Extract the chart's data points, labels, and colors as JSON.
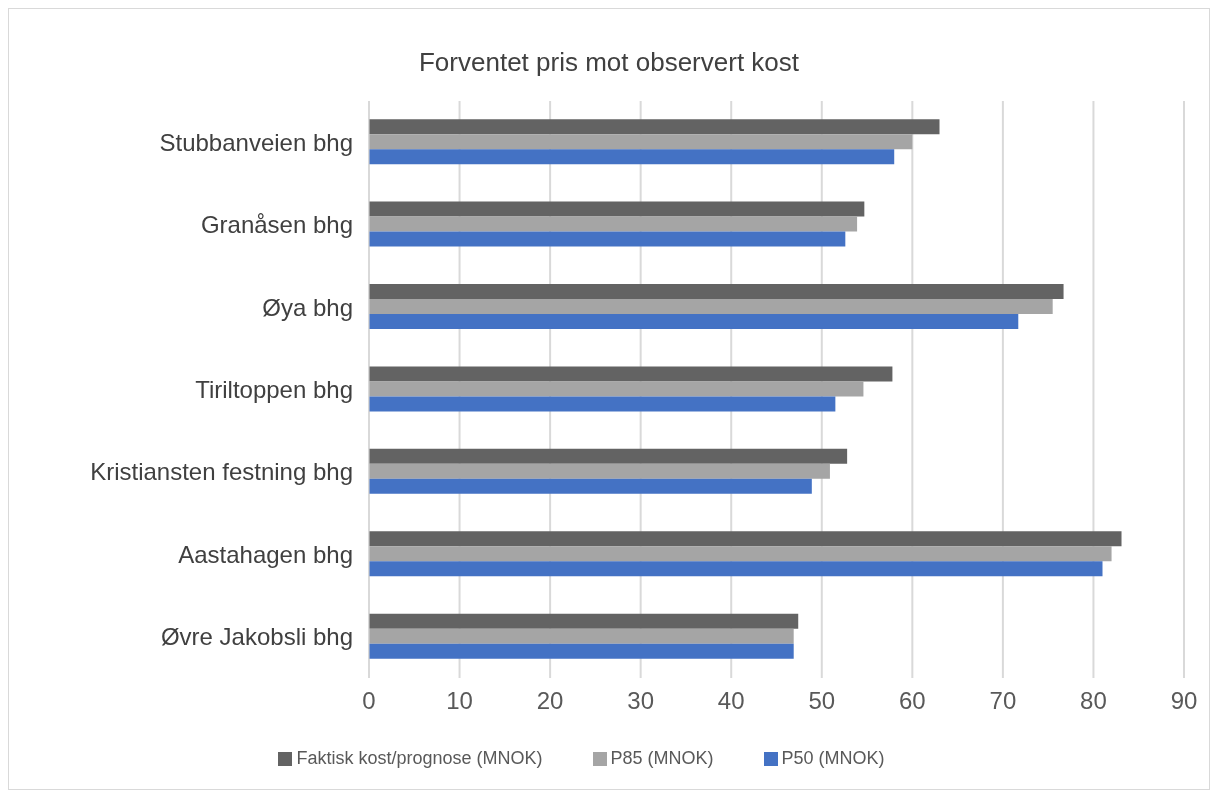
{
  "chart_data": {
    "type": "bar",
    "orientation": "horizontal",
    "title": "Forventet pris mot observert kost",
    "categories": [
      "Stubbanveien bhg",
      "Granåsen bhg",
      "Øya bhg",
      "Tiriltoppen bhg",
      "Kristiansten festning bhg",
      "Aastahagen bhg",
      "Øvre Jakobsli bhg"
    ],
    "series": [
      {
        "name": "Faktisk kost/prognose (MNOK)",
        "color": "#636363",
        "values": [
          63.0,
          54.7,
          76.7,
          57.8,
          52.8,
          83.1,
          47.4
        ]
      },
      {
        "name": "P85 (MNOK)",
        "color": "#a5a5a5",
        "values": [
          60.0,
          53.9,
          75.5,
          54.6,
          50.9,
          82.0,
          46.9
        ]
      },
      {
        "name": "P50 (MNOK)",
        "color": "#4472c4",
        "values": [
          58.0,
          52.6,
          71.7,
          51.5,
          48.9,
          81.0,
          46.9
        ]
      }
    ],
    "xlim": [
      0,
      90
    ],
    "xticks": [
      0,
      10,
      20,
      30,
      40,
      50,
      60,
      70,
      80,
      90
    ],
    "grid": "x",
    "legend": "bottom"
  }
}
